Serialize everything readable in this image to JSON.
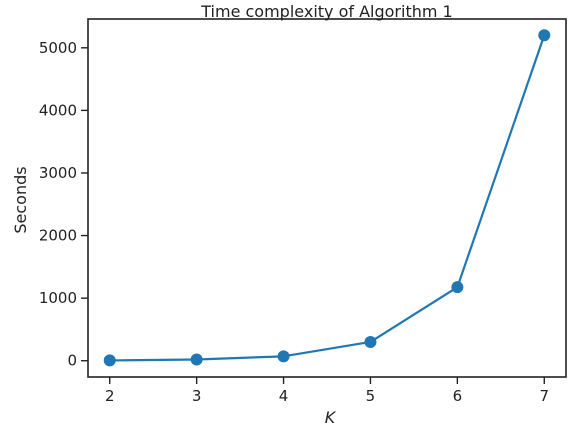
{
  "chart_data": {
    "type": "line",
    "title": "Time complexity of Algorithm 1",
    "xlabel": "K",
    "ylabel": "Seconds",
    "x": [
      2,
      3,
      4,
      5,
      6,
      7
    ],
    "series": [
      {
        "values": [
          5,
          20,
          70,
          300,
          1175,
          5200
        ],
        "color": "#1f77b4",
        "marker": "circle"
      }
    ],
    "xticks": [
      "2",
      "3",
      "4",
      "5",
      "6",
      "7"
    ],
    "yticks": [
      "0",
      "1000",
      "2000",
      "3000",
      "4000",
      "5000"
    ],
    "xlim": [
      1.75,
      7.25
    ],
    "ylim": [
      -260,
      5460
    ],
    "grid": false,
    "legend": "none"
  }
}
